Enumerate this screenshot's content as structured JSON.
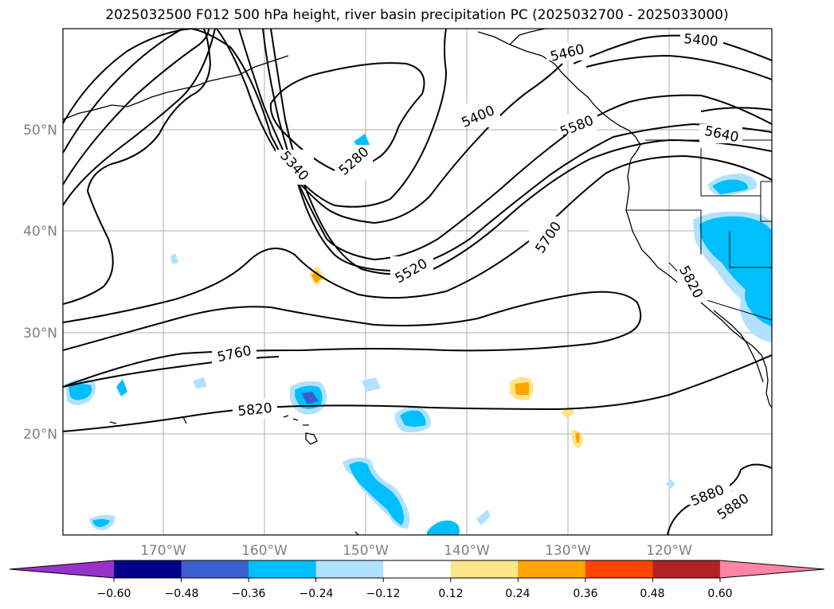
{
  "title": "2025032500 F012 500 hPa height, river basin precipitation PC (2025032700 - 2025033000)",
  "map": {
    "lat_labels": [
      "50°N",
      "40°N",
      "30°N",
      "20°N"
    ],
    "lon_labels": [
      "170°W",
      "160°W",
      "150°W",
      "140°W",
      "130°W",
      "120°W"
    ],
    "contour_labels": [
      "5400",
      "5460",
      "5580",
      "5640",
      "5340",
      "5280",
      "5400",
      "5700",
      "5520",
      "5820",
      "5760",
      "5820",
      "5880",
      "5880"
    ],
    "line_color": "#000000",
    "grid_color": "#b0b0b0"
  },
  "colorbar": {
    "colors": [
      "#9932cc",
      "#00008b",
      "#3a5fcd",
      "#00bfff",
      "#b0e2ff",
      "#ffffff",
      "#fde68a",
      "#ffa500",
      "#ff4500",
      "#b22222",
      "#ff85a5"
    ],
    "tick_labels": [
      "−0.60",
      "−0.48",
      "−0.36",
      "−0.24",
      "−0.12",
      "0.12",
      "0.24",
      "0.36",
      "0.48",
      "0.60"
    ]
  }
}
